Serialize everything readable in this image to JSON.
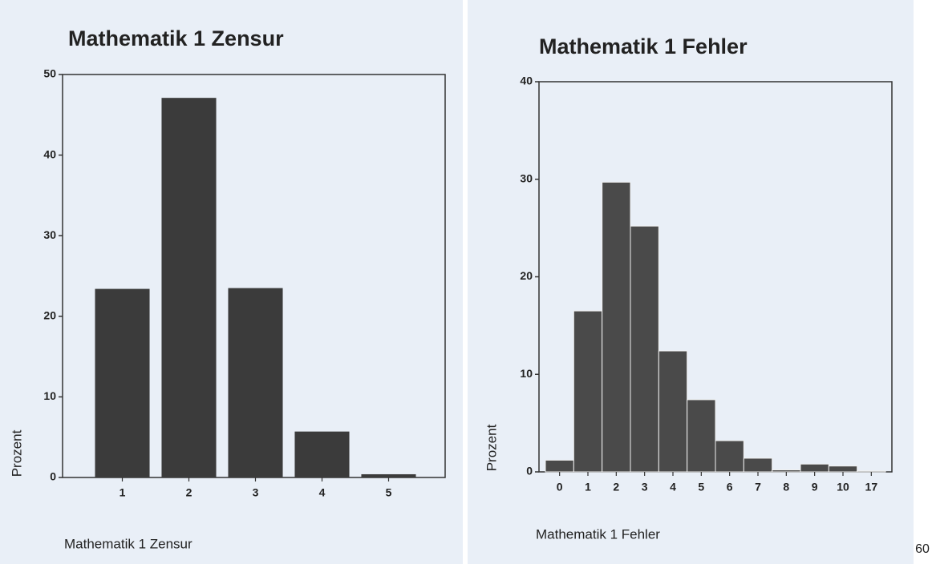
{
  "chart_data": [
    {
      "type": "bar",
      "title": "Mathematik 1 Zensur",
      "xlabel": "Mathematik 1 Zensur",
      "ylabel": "Prozent",
      "categories": [
        "1",
        "2",
        "3",
        "4",
        "5"
      ],
      "values": [
        23.4,
        47.1,
        23.5,
        5.7,
        0.4
      ],
      "color": "#3b3b3b",
      "ylim": [
        0,
        50
      ],
      "yticks": [
        0,
        10,
        20,
        30,
        40,
        50
      ]
    },
    {
      "type": "bar",
      "title": "Mathematik 1 Fehler",
      "xlabel": "Mathematik 1 Fehler",
      "ylabel": "Prozent",
      "categories": [
        "0",
        "1",
        "2",
        "3",
        "4",
        "5",
        "6",
        "7",
        "8",
        "9",
        "10",
        "17"
      ],
      "values": [
        1.2,
        16.5,
        29.7,
        25.2,
        12.4,
        7.4,
        3.2,
        1.4,
        0.2,
        0.8,
        0.6,
        0.1
      ],
      "color": "#4a4a4a",
      "ylim": [
        0,
        40
      ],
      "yticks": [
        0,
        10,
        20,
        30,
        40
      ]
    }
  ],
  "page_number": "60"
}
